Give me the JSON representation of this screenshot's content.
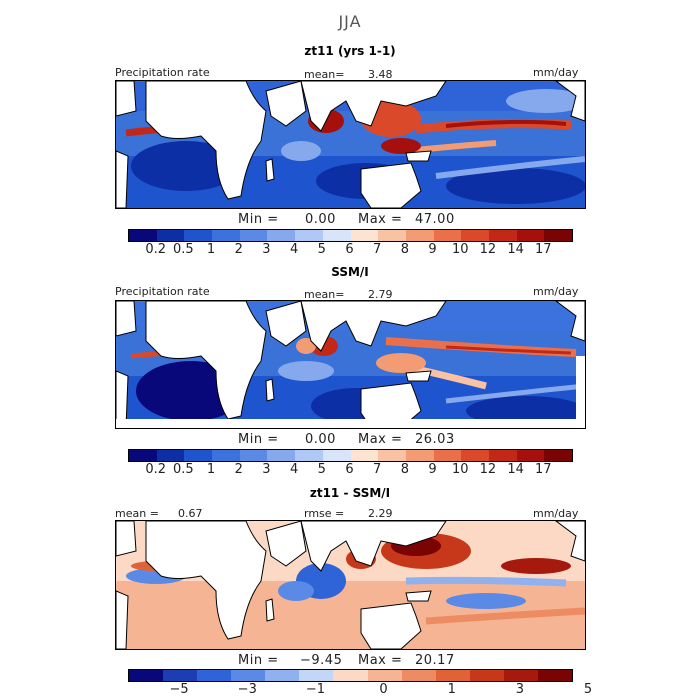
{
  "title": "JJA",
  "panels": [
    {
      "subtitle": "zt11 (yrs 1-1)",
      "left_label": "Precipitation rate",
      "center_label": "mean=",
      "center_value": "3.48",
      "right_label": "mm/day",
      "min_label": "Min =",
      "min_value": "0.00",
      "max_label": "Max =",
      "max_value": "47.00"
    },
    {
      "subtitle": "SSM/I",
      "left_label": "Precipitation rate",
      "center_label": "mean=",
      "center_value": "2.79",
      "right_label": "mm/day",
      "min_label": "Min =",
      "min_value": "0.00",
      "max_label": "Max =",
      "max_value": "26.03"
    },
    {
      "subtitle": "zt11 - SSM/I",
      "left_label": "mean =",
      "left_value": "0.67",
      "center_label": "rmse =",
      "center_value": "2.29",
      "right_label": "mm/day",
      "min_label": "Min =",
      "min_value": "−9.45",
      "max_label": "Max =",
      "max_value": "20.17"
    }
  ],
  "chart_data": [
    {
      "type": "heatmap",
      "title": "zt11 (yrs 1-1)",
      "variable": "Precipitation rate",
      "units": "mm/day",
      "mean": 3.48,
      "min": 0.0,
      "max": 47.0,
      "colorbar_ticks": [
        "0.2",
        "0.5",
        "1",
        "2",
        "3",
        "4",
        "5",
        "6",
        "7",
        "8",
        "9",
        "10",
        "12",
        "14",
        "17"
      ]
    },
    {
      "type": "heatmap",
      "title": "SSM/I",
      "variable": "Precipitation rate",
      "units": "mm/day",
      "mean": 2.79,
      "min": 0.0,
      "max": 26.03,
      "colorbar_ticks": [
        "0.2",
        "0.5",
        "1",
        "2",
        "3",
        "4",
        "5",
        "6",
        "7",
        "8",
        "9",
        "10",
        "12",
        "14",
        "17"
      ]
    },
    {
      "type": "heatmap",
      "title": "zt11 - SSM/I",
      "units": "mm/day",
      "mean": 0.67,
      "rmse": 2.29,
      "min": -9.45,
      "max": 20.17,
      "colorbar_ticks": [
        "−5",
        "−3",
        "−1",
        "0",
        "1",
        "3",
        "5"
      ]
    }
  ],
  "colors": {
    "precip_scale": [
      "#08087a",
      "#0c2fa6",
      "#1f54cf",
      "#3b72de",
      "#5a8ae6",
      "#86a9ee",
      "#b0c8f5",
      "#d8e4fa",
      "#fde3d2",
      "#f9c2a2",
      "#f39c74",
      "#ea704b",
      "#da4a2a",
      "#c32817",
      "#a50f0c",
      "#7a0303"
    ],
    "diff_scale": [
      "#08087a",
      "#1b3fb3",
      "#2f63d8",
      "#5a8ae6",
      "#8fb1f0",
      "#c4d6f7",
      "#fbd9c4",
      "#f5b493",
      "#ed8c63",
      "#e06338",
      "#c7381b",
      "#a51a0c",
      "#7a0303"
    ],
    "land": "#ffffff"
  }
}
